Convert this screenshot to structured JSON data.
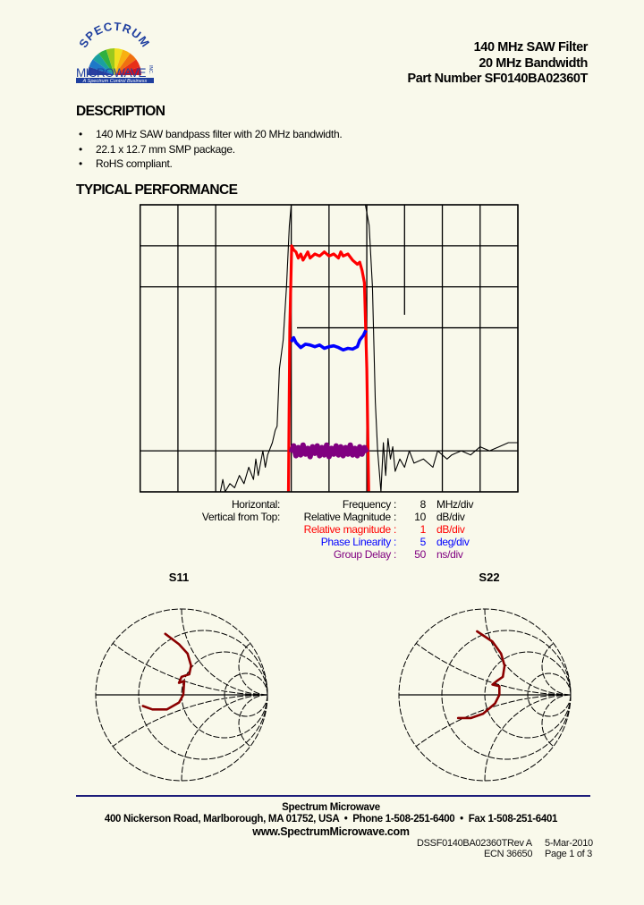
{
  "logo": {
    "top_text": "SPECTRUM",
    "main_text": "MICROWAVE",
    "suffix": "INC.",
    "tagline": "A Spectrum Control Business"
  },
  "header": {
    "line1": "140 MHz SAW Filter",
    "line2": "20 MHz Bandwidth",
    "line3": "Part Number SF0140BA02360T"
  },
  "description": {
    "title": "DESCRIPTION",
    "bullet_glyph": "•",
    "items": [
      "140 MHz SAW bandpass filter with 20 MHz bandwidth.",
      "22.1 x 12.7 mm SMP package.",
      "RoHS compliant."
    ]
  },
  "performance": {
    "title": "TYPICAL PERFORMANCE"
  },
  "legend": {
    "horizontal_label": "Horizontal:",
    "vertical_label": "Vertical from Top:",
    "rows": [
      {
        "name": "Frequency :",
        "value": "8",
        "unit": "MHz/div",
        "color": "#000000"
      },
      {
        "name": "Relative Magnitude :",
        "value": "10",
        "unit": "dB/div",
        "color": "#000000"
      },
      {
        "name": "Relative magnitude :",
        "value": "1",
        "unit": "dB/div",
        "color": "#ff0000"
      },
      {
        "name": "Phase Linearity :",
        "value": "5",
        "unit": "deg/div",
        "color": "#0000ff"
      },
      {
        "name": "Group Delay :",
        "value": "50",
        "unit": "ns/div",
        "color": "#800080"
      }
    ]
  },
  "chart_data": [
    {
      "type": "line",
      "xlabel": "",
      "ylabel": "",
      "xlim": [
        100,
        180
      ],
      "x_divisions": 10,
      "y_divisions": 7,
      "grid": true,
      "series": [
        {
          "color": "#000000",
          "scale": "10 dB/div",
          "ylim": [
            -70,
            0
          ],
          "x": [
            100,
            117,
            117.5,
            118,
            119,
            120,
            121,
            122,
            123,
            124,
            124.5,
            125,
            126,
            126.5,
            127,
            128,
            128.6,
            129,
            129.5,
            130.3,
            131,
            131.6,
            132,
            136,
            140,
            144,
            147.7,
            148.5,
            149.2,
            149.8,
            150.3,
            151,
            151.5,
            152,
            152.5,
            153,
            153.5,
            154,
            155,
            156,
            157,
            158,
            160,
            162,
            163,
            165,
            166,
            168,
            170,
            172,
            174,
            176,
            178,
            180
          ],
          "y": [
            -70,
            -70,
            -67,
            -70,
            -68,
            -69,
            -66,
            -68,
            -64,
            -67,
            -62,
            -66,
            -60,
            -64,
            -61,
            -58,
            -55,
            -54,
            -40,
            -33,
            -20,
            -5,
            0,
            0,
            0,
            0,
            0,
            -5,
            -20,
            -48,
            -60,
            -70,
            -58,
            -66,
            -57,
            -62,
            -59,
            -65,
            -62,
            -64,
            -60,
            -63,
            -62,
            -64,
            -60,
            -62,
            -61,
            -60,
            -61,
            -59,
            -60,
            -59,
            -58,
            -58
          ]
        },
        {
          "color": "#ff0000",
          "scale": "1 dB/div",
          "ylim": [
            -7,
            0
          ],
          "x": [
            131.4,
            131.7,
            132.1,
            132.5,
            133,
            133.5,
            134,
            134.5,
            135,
            135.5,
            136,
            137,
            138,
            139,
            140,
            141,
            142,
            142.5,
            143,
            144,
            145,
            146,
            146.5,
            147,
            147.5,
            148,
            148.4
          ],
          "y": [
            -7,
            -3,
            -1.0,
            -1.1,
            -1.15,
            -1.3,
            -1.2,
            -1.35,
            -1.25,
            -1.15,
            -1.3,
            -1.2,
            -1.25,
            -1.15,
            -1.25,
            -1.2,
            -1.3,
            -1.15,
            -1.25,
            -1.2,
            -1.35,
            -1.45,
            -1.4,
            -1.6,
            -1.9,
            -4,
            -7
          ]
        },
        {
          "color": "#0000ff",
          "scale": "5 deg/div",
          "x": [
            132,
            132.5,
            133,
            134,
            135,
            136,
            137,
            138,
            139,
            140,
            141,
            142,
            143,
            144,
            145,
            146,
            146.5,
            147.3,
            147.8
          ],
          "y": [
            -1.7,
            -1.2,
            -1.8,
            -2.4,
            -2.0,
            -2.1,
            -2.3,
            -2.1,
            -2.5,
            -2.3,
            -2.2,
            -2.4,
            -2.7,
            -2.5,
            -2.6,
            -2.3,
            -1.5,
            -0.9,
            -0.3
          ]
        },
        {
          "color": "#800080",
          "scale": "50 ns/div",
          "x": [
            132,
            132.5,
            133,
            133.5,
            134,
            134.5,
            135,
            135.5,
            136,
            136.5,
            137,
            137.5,
            138,
            138.5,
            139,
            139.5,
            140,
            140.5,
            141,
            141.5,
            142,
            142.5,
            143,
            143.5,
            144,
            144.5,
            145,
            145.5,
            146,
            146.5,
            147,
            147.5,
            148
          ],
          "y": [
            -2,
            6,
            -6,
            4,
            -5,
            7,
            -4,
            3,
            -7,
            5,
            -3,
            6,
            -6,
            4,
            -5,
            7,
            -7,
            3,
            -4,
            6,
            -5,
            5,
            -6,
            4,
            -4,
            7,
            -5,
            3,
            -6,
            5,
            -4,
            4,
            -2
          ]
        }
      ]
    },
    {
      "type": "smith",
      "title": "S11",
      "trace_color": "#8b0000",
      "gamma_re": [
        -0.19,
        -0.03,
        0.07,
        0.11,
        0.09,
        0.0,
        -0.03,
        0.03,
        0.02,
        -0.03,
        -0.17,
        -0.34,
        -0.45
      ],
      "gamma_im": [
        0.71,
        0.59,
        0.48,
        0.34,
        0.24,
        0.21,
        0.14,
        0.16,
        0.0,
        -0.09,
        -0.17,
        -0.17,
        -0.13
      ]
    },
    {
      "type": "smith",
      "title": "S22",
      "trace_color": "#8b0000",
      "gamma_re": [
        -0.09,
        0.09,
        0.19,
        0.23,
        0.21,
        0.14,
        0.09,
        0.17,
        0.17,
        0.12,
        -0.02,
        -0.16,
        -0.31
      ],
      "gamma_im": [
        0.74,
        0.62,
        0.48,
        0.34,
        0.21,
        0.16,
        0.12,
        0.1,
        0.0,
        -0.1,
        -0.22,
        -0.27,
        -0.27
      ]
    }
  ],
  "footer": {
    "company": "Spectrum Microwave",
    "address": "400 Nickerson Road, Marlborough, MA 01752, USA  •  Phone 1-508-251-6400  •  Fax 1-508-251-6401",
    "website": "www.SpectrumMicrowave.com",
    "doc_number": "DSSF0140BA02360T",
    "revision": "Rev A",
    "date": "5-Mar-2010",
    "ecn": "ECN 36650",
    "page": "Page 1 of 3",
    "rule_color": "#1c1c7a"
  }
}
